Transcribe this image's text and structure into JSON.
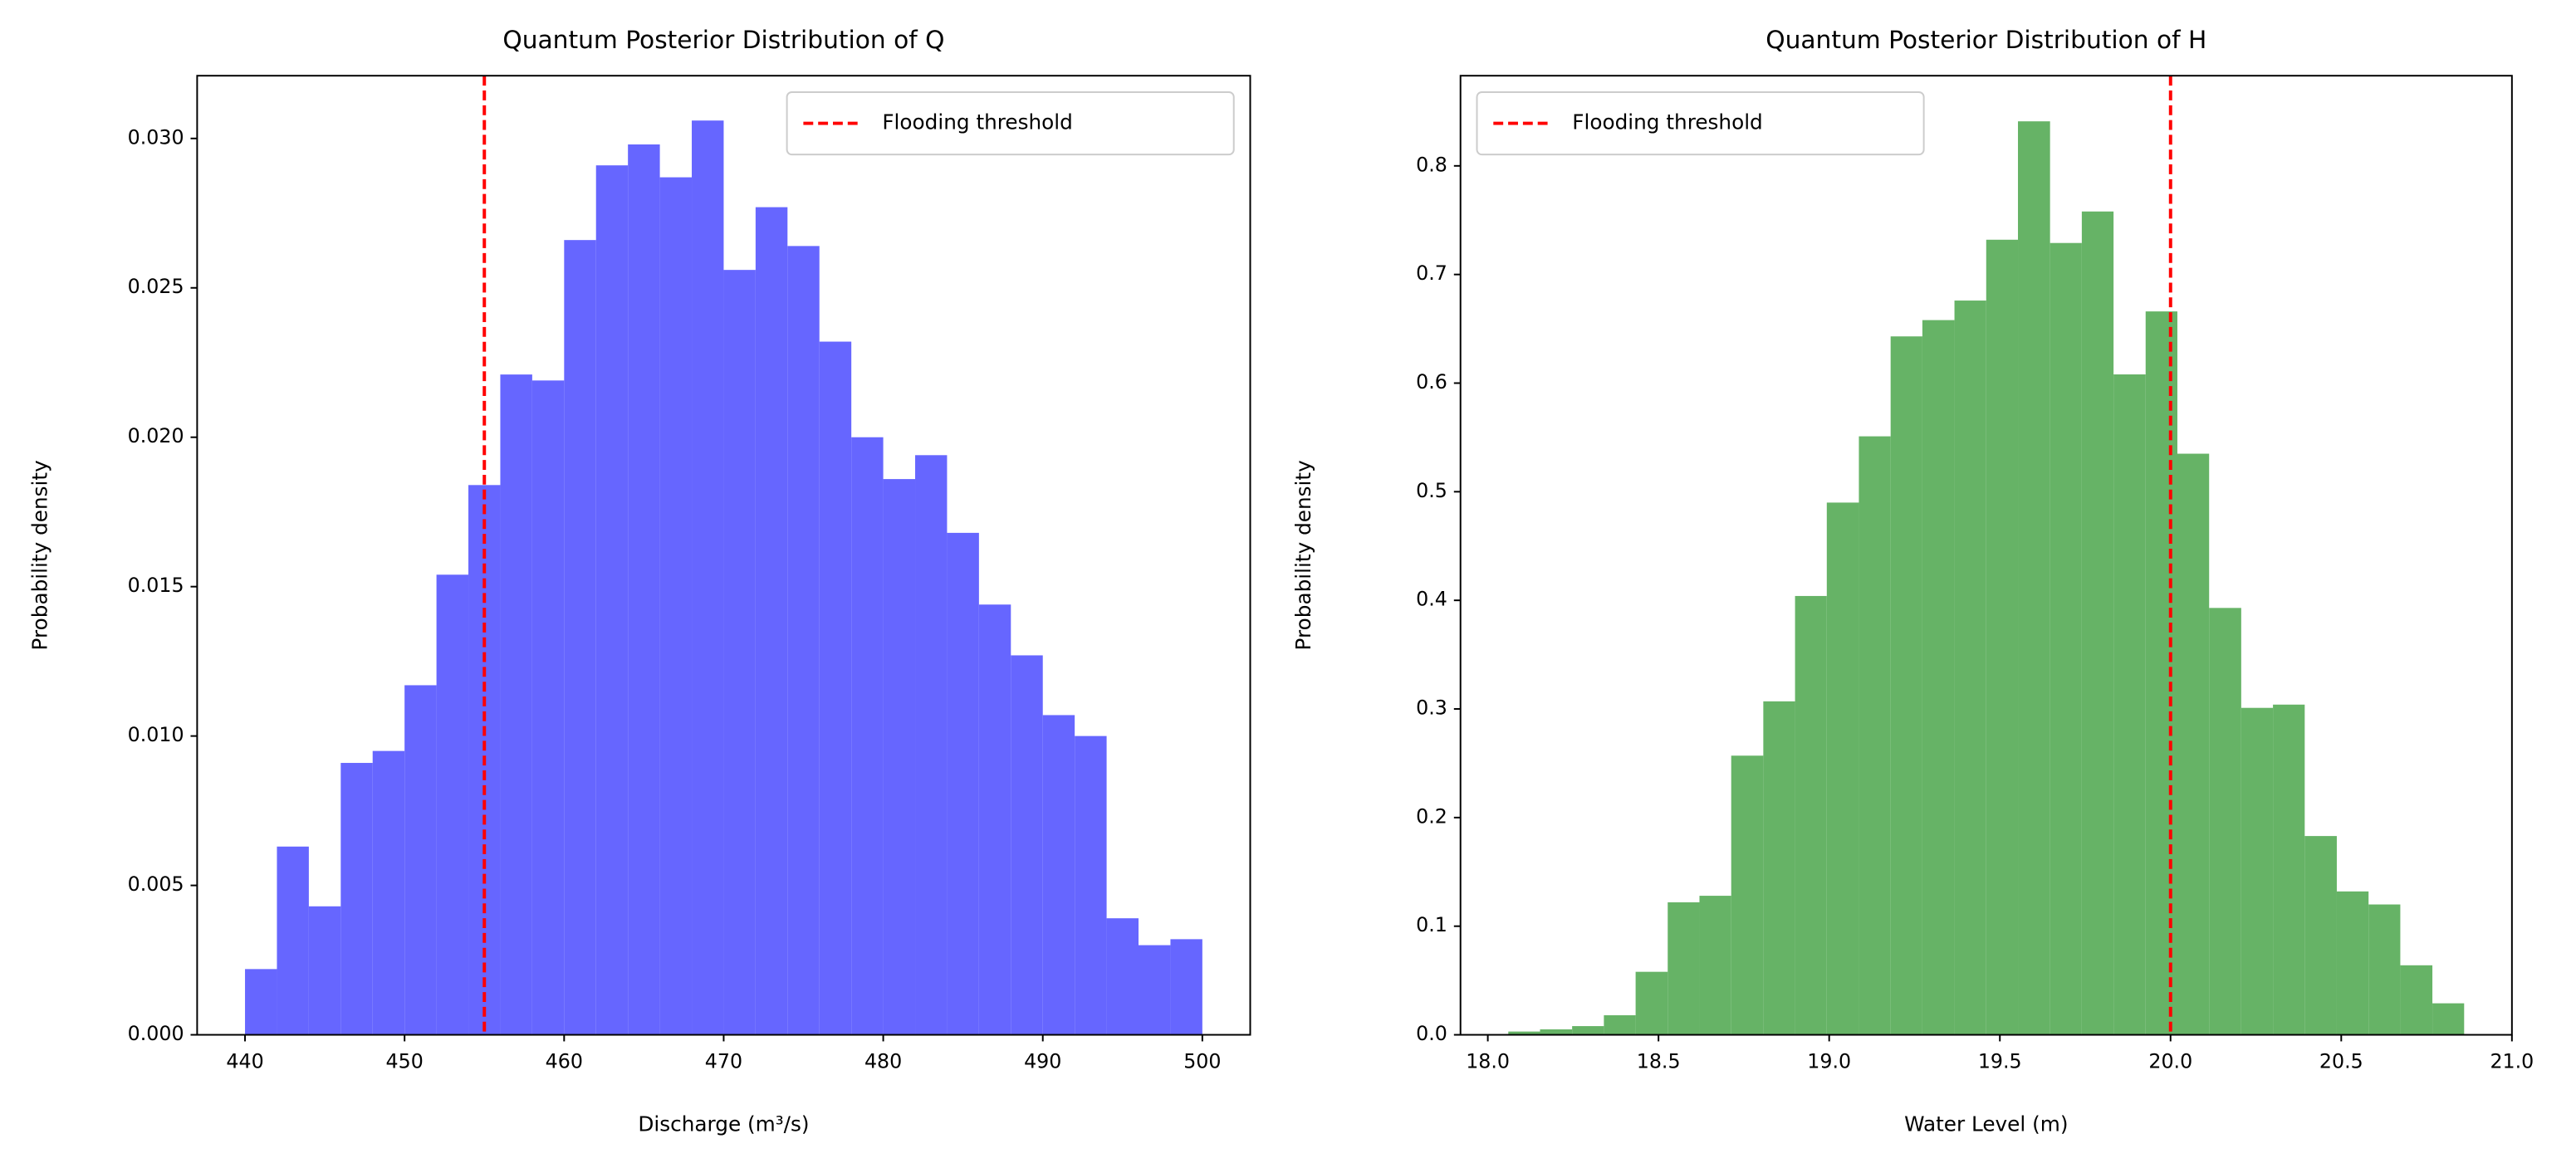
{
  "chart_data": [
    {
      "type": "histogram",
      "title": "Quantum Posterior Distribution of Q",
      "xlabel": "Discharge (m³/s)",
      "ylabel": "Probability density",
      "bins": [
        440,
        442,
        444,
        446,
        448,
        450,
        452,
        454,
        456,
        458,
        460,
        462,
        464,
        466,
        468,
        470,
        472,
        474,
        476,
        478,
        480,
        482,
        484,
        486,
        488,
        490,
        492,
        494,
        496,
        498,
        500
      ],
      "values": [
        0.0022,
        0.0063,
        0.0043,
        0.0091,
        0.0095,
        0.0117,
        0.0154,
        0.0184,
        0.0221,
        0.0219,
        0.0266,
        0.0291,
        0.0298,
        0.0287,
        0.0306,
        0.0256,
        0.0277,
        0.0264,
        0.0232,
        0.02,
        0.0186,
        0.0194,
        0.0168,
        0.0144,
        0.0127,
        0.0107,
        0.01,
        0.0039,
        0.003,
        0.0032
      ],
      "color": "#6666ff",
      "xlim": [
        437,
        503
      ],
      "ylim": [
        0,
        0.0321
      ],
      "xticks": [
        440,
        450,
        460,
        470,
        480,
        490,
        500
      ],
      "yticks": [
        {
          "value": 0,
          "label": "0.000"
        },
        {
          "value": 0.005,
          "label": "0.005"
        },
        {
          "value": 0.01,
          "label": "0.010"
        },
        {
          "value": 0.015,
          "label": "0.015"
        },
        {
          "value": 0.02,
          "label": "0.020"
        },
        {
          "value": 0.025,
          "label": "0.025"
        },
        {
          "value": 0.03,
          "label": "0.030"
        }
      ],
      "threshold": {
        "value": 455,
        "label": "Flooding threshold",
        "color": "#ff0000"
      },
      "legend": "upper right"
    },
    {
      "type": "histogram",
      "title": "Quantum Posterior Distribution of H",
      "xlabel": "Water Level (m)",
      "ylabel": "Probability density",
      "bins": [
        18.06,
        18.153,
        18.247,
        18.34,
        18.433,
        18.527,
        18.62,
        18.713,
        18.807,
        18.9,
        18.993,
        19.087,
        19.18,
        19.273,
        19.367,
        19.46,
        19.553,
        19.647,
        19.74,
        19.833,
        19.927,
        20.02,
        20.113,
        20.207,
        20.3,
        20.393,
        20.487,
        20.58,
        20.673,
        20.767,
        20.86
      ],
      "values": [
        0.003,
        0.005,
        0.008,
        0.018,
        0.058,
        0.122,
        0.128,
        0.257,
        0.307,
        0.404,
        0.49,
        0.551,
        0.643,
        0.658,
        0.676,
        0.732,
        0.841,
        0.729,
        0.758,
        0.608,
        0.666,
        0.535,
        0.393,
        0.301,
        0.304,
        0.183,
        0.132,
        0.12,
        0.064,
        0.029
      ],
      "color": "#66b366",
      "xlim": [
        17.92,
        21.0
      ],
      "ylim": [
        0,
        0.883
      ],
      "xticks": [
        {
          "value": 18,
          "label": "18.0"
        },
        18.5,
        {
          "value": 19,
          "label": "19.0"
        },
        19.5,
        {
          "value": 20,
          "label": "20.0"
        },
        20.5,
        {
          "value": 21,
          "label": "21.0"
        }
      ],
      "yticks": [
        {
          "value": 0,
          "label": "0.0"
        },
        0.1,
        0.2,
        0.3,
        0.4,
        0.5,
        0.6,
        0.7,
        0.8
      ],
      "threshold": {
        "value": 20,
        "label": "Flooding threshold",
        "color": "#ff0000"
      },
      "legend": "upper left"
    }
  ]
}
